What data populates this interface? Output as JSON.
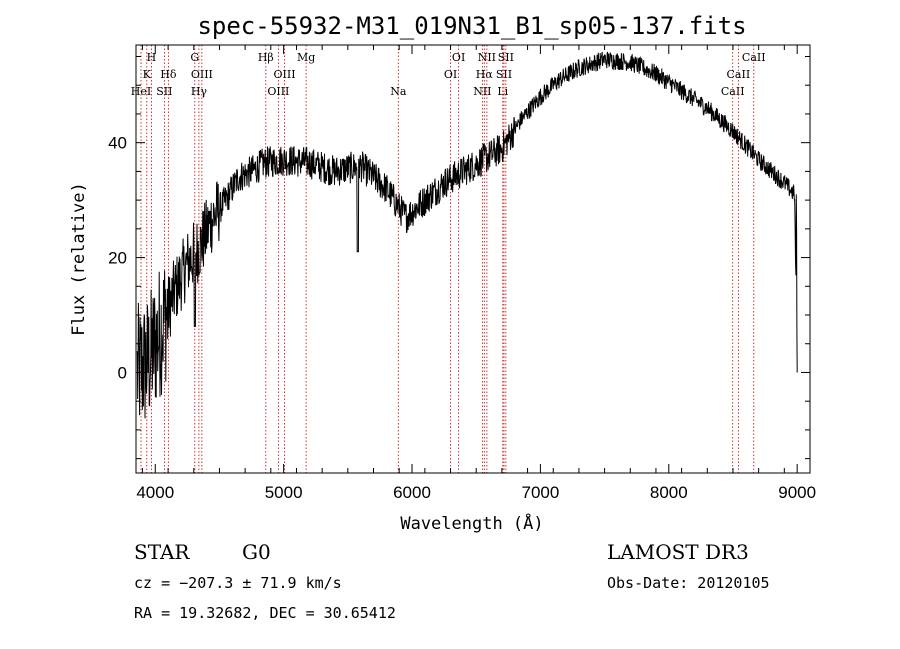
{
  "chart_data": {
    "type": "line",
    "title": "spec-55932-M31_019N31_B1_sp05-137.fits",
    "xlabel": "Wavelength (Å)",
    "ylabel": "Flux (relative)",
    "xlim": [
      3850,
      9100
    ],
    "ylim": [
      -17.5,
      57
    ],
    "x_ticks": [
      4000,
      5000,
      6000,
      7000,
      8000,
      9000
    ],
    "y_ticks": [
      0,
      20,
      40
    ],
    "spectrum_anchor_points": [
      {
        "x": 3860,
        "y": 0
      },
      {
        "x": 3950,
        "y": 2
      },
      {
        "x": 4050,
        "y": 8
      },
      {
        "x": 4150,
        "y": 14
      },
      {
        "x": 4250,
        "y": 19
      },
      {
        "x": 4350,
        "y": 22
      },
      {
        "x": 4450,
        "y": 27
      },
      {
        "x": 4550,
        "y": 30
      },
      {
        "x": 4650,
        "y": 34
      },
      {
        "x": 4750,
        "y": 35
      },
      {
        "x": 4850,
        "y": 36.5
      },
      {
        "x": 5000,
        "y": 37
      },
      {
        "x": 5200,
        "y": 36.5
      },
      {
        "x": 5400,
        "y": 35
      },
      {
        "x": 5600,
        "y": 36
      },
      {
        "x": 5800,
        "y": 32
      },
      {
        "x": 5950,
        "y": 27
      },
      {
        "x": 6100,
        "y": 30
      },
      {
        "x": 6250,
        "y": 33
      },
      {
        "x": 6400,
        "y": 35
      },
      {
        "x": 6550,
        "y": 37
      },
      {
        "x": 6700,
        "y": 39
      },
      {
        "x": 6850,
        "y": 44
      },
      {
        "x": 7000,
        "y": 48
      },
      {
        "x": 7150,
        "y": 51
      },
      {
        "x": 7300,
        "y": 53
      },
      {
        "x": 7500,
        "y": 54.5
      },
      {
        "x": 7700,
        "y": 54
      },
      {
        "x": 7900,
        "y": 52
      },
      {
        "x": 8100,
        "y": 49
      },
      {
        "x": 8300,
        "y": 46
      },
      {
        "x": 8500,
        "y": 42
      },
      {
        "x": 8700,
        "y": 37
      },
      {
        "x": 8900,
        "y": 33
      },
      {
        "x": 8980,
        "y": 31
      },
      {
        "x": 9000,
        "y": 0
      }
    ],
    "dips": [
      {
        "x": 5577,
        "y": 21
      },
      {
        "x": 4308,
        "y": 8
      }
    ],
    "line_markers": [
      {
        "wave": 3889,
        "label": "HeI",
        "row": 3
      },
      {
        "wave": 3934,
        "label": "K",
        "row": 2
      },
      {
        "wave": 3970,
        "label": "H",
        "row": 1
      },
      {
        "wave": 4071,
        "label": "SII",
        "row": 3
      },
      {
        "wave": 4102,
        "label": "Hδ",
        "row": 2
      },
      {
        "wave": 4308,
        "label": "G",
        "row": 1
      },
      {
        "wave": 4340,
        "label": "Hγ",
        "row": 3
      },
      {
        "wave": 4363,
        "label": "OIII",
        "row": 2
      },
      {
        "wave": 4861,
        "label": "Hβ",
        "row": 1
      },
      {
        "wave": 4959,
        "label": "OIII",
        "row": 3
      },
      {
        "wave": 5007,
        "label": "OIII",
        "row": 2
      },
      {
        "wave": 5175,
        "label": "Mg",
        "row": 1
      },
      {
        "wave": 5893,
        "label": "Na",
        "row": 3
      },
      {
        "wave": 6300,
        "label": "OI",
        "row": 2
      },
      {
        "wave": 6363,
        "label": "OI",
        "row": 1
      },
      {
        "wave": 6548,
        "label": "NII",
        "row": 3
      },
      {
        "wave": 6563,
        "label": "Hα",
        "row": 2
      },
      {
        "wave": 6583,
        "label": "NII",
        "row": 1
      },
      {
        "wave": 6707,
        "label": "Li",
        "row": 3
      },
      {
        "wave": 6716,
        "label": "SII",
        "row": 2
      },
      {
        "wave": 6731,
        "label": "SII",
        "row": 1
      },
      {
        "wave": 8498,
        "label": "CaII",
        "row": 3
      },
      {
        "wave": 8542,
        "label": "CaII",
        "row": 2
      },
      {
        "wave": 8662,
        "label": "CaII",
        "row": 1
      }
    ],
    "marker_color": "#cc0000",
    "line_color": "#000000"
  },
  "info": {
    "object_class": "STAR",
    "subclass": "G0",
    "survey": "LAMOST DR3",
    "velocity": "cz = −207.3 ± 71.9 km/s",
    "obs_date": "Obs-Date: 20120105",
    "coords": "RA =  19.32682, DEC =  30.65412"
  }
}
